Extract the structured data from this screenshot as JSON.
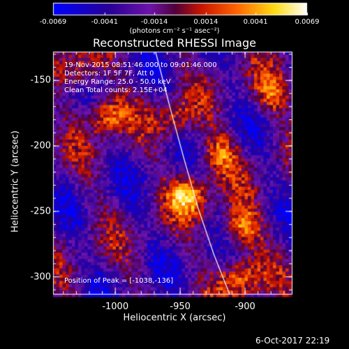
{
  "chart_data": {
    "type": "heatmap",
    "title": "Reconstructed RHESSI Image",
    "xlabel": "Heliocentric X (arcsec)",
    "ylabel": "Heliocentric Y (arcsec)",
    "xlim": [
      -1048,
      -864
    ],
    "ylim": [
      -313,
      -128
    ],
    "xticks": [
      -1000,
      -950,
      -900
    ],
    "yticks": [
      -150,
      -200,
      -250,
      -300
    ],
    "colorbar": {
      "ticks": [
        "-0.0069",
        "-0.0041",
        "-0.0014",
        "0.0014",
        "0.0041",
        "0.0069"
      ],
      "tick_values": [
        -0.0069,
        -0.0041,
        -0.0014,
        0.0014,
        0.0041,
        0.0069
      ],
      "range": [
        -0.0069,
        0.0069
      ],
      "units": "(photons cm⁻² s⁻¹ asec⁻²)",
      "colormap": "blue-purple-red-yellow-white"
    },
    "annotations": [
      "19-Nov-2015 08:51:46.000 to 09:01:46.000",
      "Detectors: 1F 5F 7F, Att 0",
      "Energy Range: 25.0 - 50.0 keV",
      "Clean     Total counts: 2.15E+04"
    ],
    "peak_label": "Position of Peak = [-1038,-136]",
    "limb": [
      [
        -969,
        -128
      ],
      [
        -958,
        -170
      ],
      [
        -947,
        -210
      ],
      [
        -936,
        -248
      ],
      [
        -924,
        -283
      ],
      [
        -912,
        -313
      ]
    ],
    "sources": [
      {
        "x": -1028,
        "y": -140,
        "intensity": 0.0052
      },
      {
        "x": -1008,
        "y": -175,
        "intensity": 0.006
      },
      {
        "x": -944,
        "y": -236,
        "intensity": 0.0066
      },
      {
        "x": -921,
        "y": -205,
        "intensity": 0.005
      },
      {
        "x": -904,
        "y": -262,
        "intensity": 0.0064
      },
      {
        "x": -905,
        "y": -299,
        "intensity": 0.0058
      },
      {
        "x": -955,
        "y": -178,
        "intensity": 0.0042
      },
      {
        "x": -880,
        "y": -160,
        "intensity": 0.0038
      }
    ]
  },
  "timestamp": "6-Oct-2017 22:19"
}
